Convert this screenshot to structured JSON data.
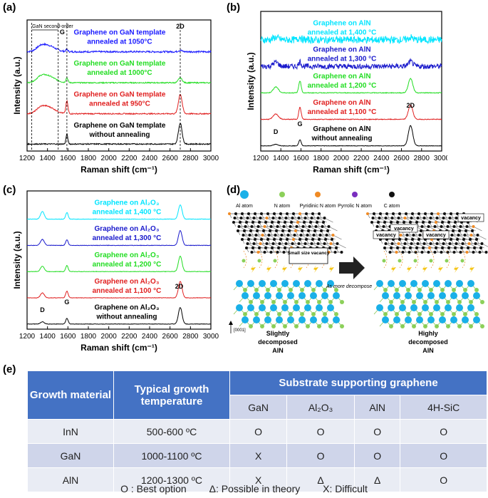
{
  "panels": {
    "a": {
      "label": "(a)"
    },
    "b": {
      "label": "(b)"
    },
    "c": {
      "label": "(c)"
    },
    "d": {
      "label": "(d)"
    },
    "e": {
      "label": "(e)"
    }
  },
  "chart_data": [
    {
      "id": "a",
      "type": "line",
      "xlabel": "Raman shift (cm⁻¹)",
      "ylabel": "Intensity (a.u.)",
      "xlim": [
        1200,
        3000
      ],
      "xticks": [
        1200,
        1400,
        1600,
        1800,
        2000,
        2200,
        2400,
        2600,
        2800,
        3000
      ],
      "annotations": [
        "GaN second-order",
        "G",
        "2D"
      ],
      "series": [
        {
          "name": "Graphene on GaN template annealed at 1050°C",
          "color": "#1a1aff",
          "label_lines": [
            "Graphene on GaN template",
            "annealed at 1050°C"
          ]
        },
        {
          "name": "Graphene on GaN template annealed at 1000°C",
          "color": "#22dd22",
          "label_lines": [
            "Graphene on GaN template",
            "annealed at 1000°C"
          ]
        },
        {
          "name": "Graphene on GaN template annealed at 950°C",
          "color": "#e02020",
          "label_lines": [
            "Graphene on GaN template",
            "annealed at 950°C"
          ]
        },
        {
          "name": "Graphene on GaN template without annealing",
          "color": "#000000",
          "label_lines": [
            "Graphene on GaN template",
            "without annealing"
          ]
        }
      ]
    },
    {
      "id": "b",
      "type": "line",
      "xlabel": "Raman shift (cm⁻¹)",
      "ylabel": "Intensity (a.u.)",
      "xlim": [
        1200,
        3000
      ],
      "xticks": [
        1200,
        1400,
        1600,
        1800,
        2000,
        2200,
        2400,
        2600,
        2800,
        3000
      ],
      "annotations": [
        "D",
        "G",
        "2D"
      ],
      "series": [
        {
          "name": "Graphene on AlN annealed at 1,400 °C",
          "color": "#00e5ff",
          "label_lines": [
            "Graphene on AlN",
            "annealed at 1,400 °C"
          ]
        },
        {
          "name": "Graphene on AlN annealed at 1,300 °C",
          "color": "#1a1acc",
          "label_lines": [
            "Graphene on AlN",
            "annealed at 1,300 °C"
          ]
        },
        {
          "name": "Graphene on AlN annealed at 1,200 °C",
          "color": "#22dd22",
          "label_lines": [
            "Graphene on AlN",
            "annealed at 1,200 °C"
          ]
        },
        {
          "name": "Graphene on AlN annealed at 1,100 °C",
          "color": "#e02020",
          "label_lines": [
            "Graphene on AlN",
            "annealed at 1,100 °C"
          ]
        },
        {
          "name": "Graphene on AlN without annealing",
          "color": "#000000",
          "label_lines": [
            "Graphene on AlN",
            "without annealing"
          ]
        }
      ]
    },
    {
      "id": "c",
      "type": "line",
      "xlabel": "Raman shift (cm⁻¹)",
      "ylabel": "Intensity (a.u.)",
      "xlim": [
        1200,
        3000
      ],
      "xticks": [
        1200,
        1400,
        1600,
        1800,
        2000,
        2200,
        2400,
        2600,
        2800,
        3000
      ],
      "annotations": [
        "D",
        "G",
        "2D"
      ],
      "series": [
        {
          "name": "Graphene on Al2O3 annealed at 1,400 °C",
          "color": "#00e5ff",
          "label_lines": [
            "Graphene on Al₂O₃",
            "annealed at 1,400 °C"
          ]
        },
        {
          "name": "Graphene on Al2O3 annealed at 1,300 °C",
          "color": "#1a1acc",
          "label_lines": [
            "Graphene on Al₂O₃",
            "annealed at 1,300 °C"
          ]
        },
        {
          "name": "Graphene on Al2O3 annealed at 1,200 °C",
          "color": "#22dd22",
          "label_lines": [
            "Graphene on Al₂O₃",
            "annealed at 1,200 °C"
          ]
        },
        {
          "name": "Graphene on Al2O3 annealed at 1,100 °C",
          "color": "#e02020",
          "label_lines": [
            "Graphene on Al₂O₃",
            "annealed at 1,100 °C"
          ]
        },
        {
          "name": "Graphene on Al2O3 without annealing",
          "color": "#000000",
          "label_lines": [
            "Graphene on Al₂O₃",
            "without annealing"
          ]
        }
      ]
    }
  ],
  "diagram": {
    "legend": [
      "Al atom",
      "N atom",
      "Pyridinic N atom",
      "Pyrrolic N atom",
      "C atom"
    ],
    "small_vacancy": "Small size vacancy",
    "vacancy": "vacancy",
    "more": "As more decompose",
    "axis": "[0001]",
    "left_caption": [
      "Slightly",
      "decomposed",
      "AlN"
    ],
    "right_caption": [
      "Highly",
      "decomposed",
      "AlN"
    ]
  },
  "table": {
    "h_growth": "Growth material",
    "h_temp": "Typical growth temperature",
    "h_sub": "Substrate supporting graphene",
    "subs": [
      "GaN",
      "Al₂O₃",
      "AlN",
      "4H-SiC"
    ],
    "rows": [
      {
        "mat": "InN",
        "temp": "500-600 ºC",
        "vals": [
          "O",
          "O",
          "O",
          "O"
        ]
      },
      {
        "mat": "GaN",
        "temp": "1000-1100 ºC",
        "vals": [
          "X",
          "O",
          "O",
          "O"
        ]
      },
      {
        "mat": "AlN",
        "temp": "1200-1300 ºC",
        "vals": [
          "X",
          "Δ",
          "Δ",
          "O"
        ]
      }
    ],
    "legend": [
      "O : Best option",
      "Δ: Possible in theory",
      "X: Difficult"
    ]
  }
}
